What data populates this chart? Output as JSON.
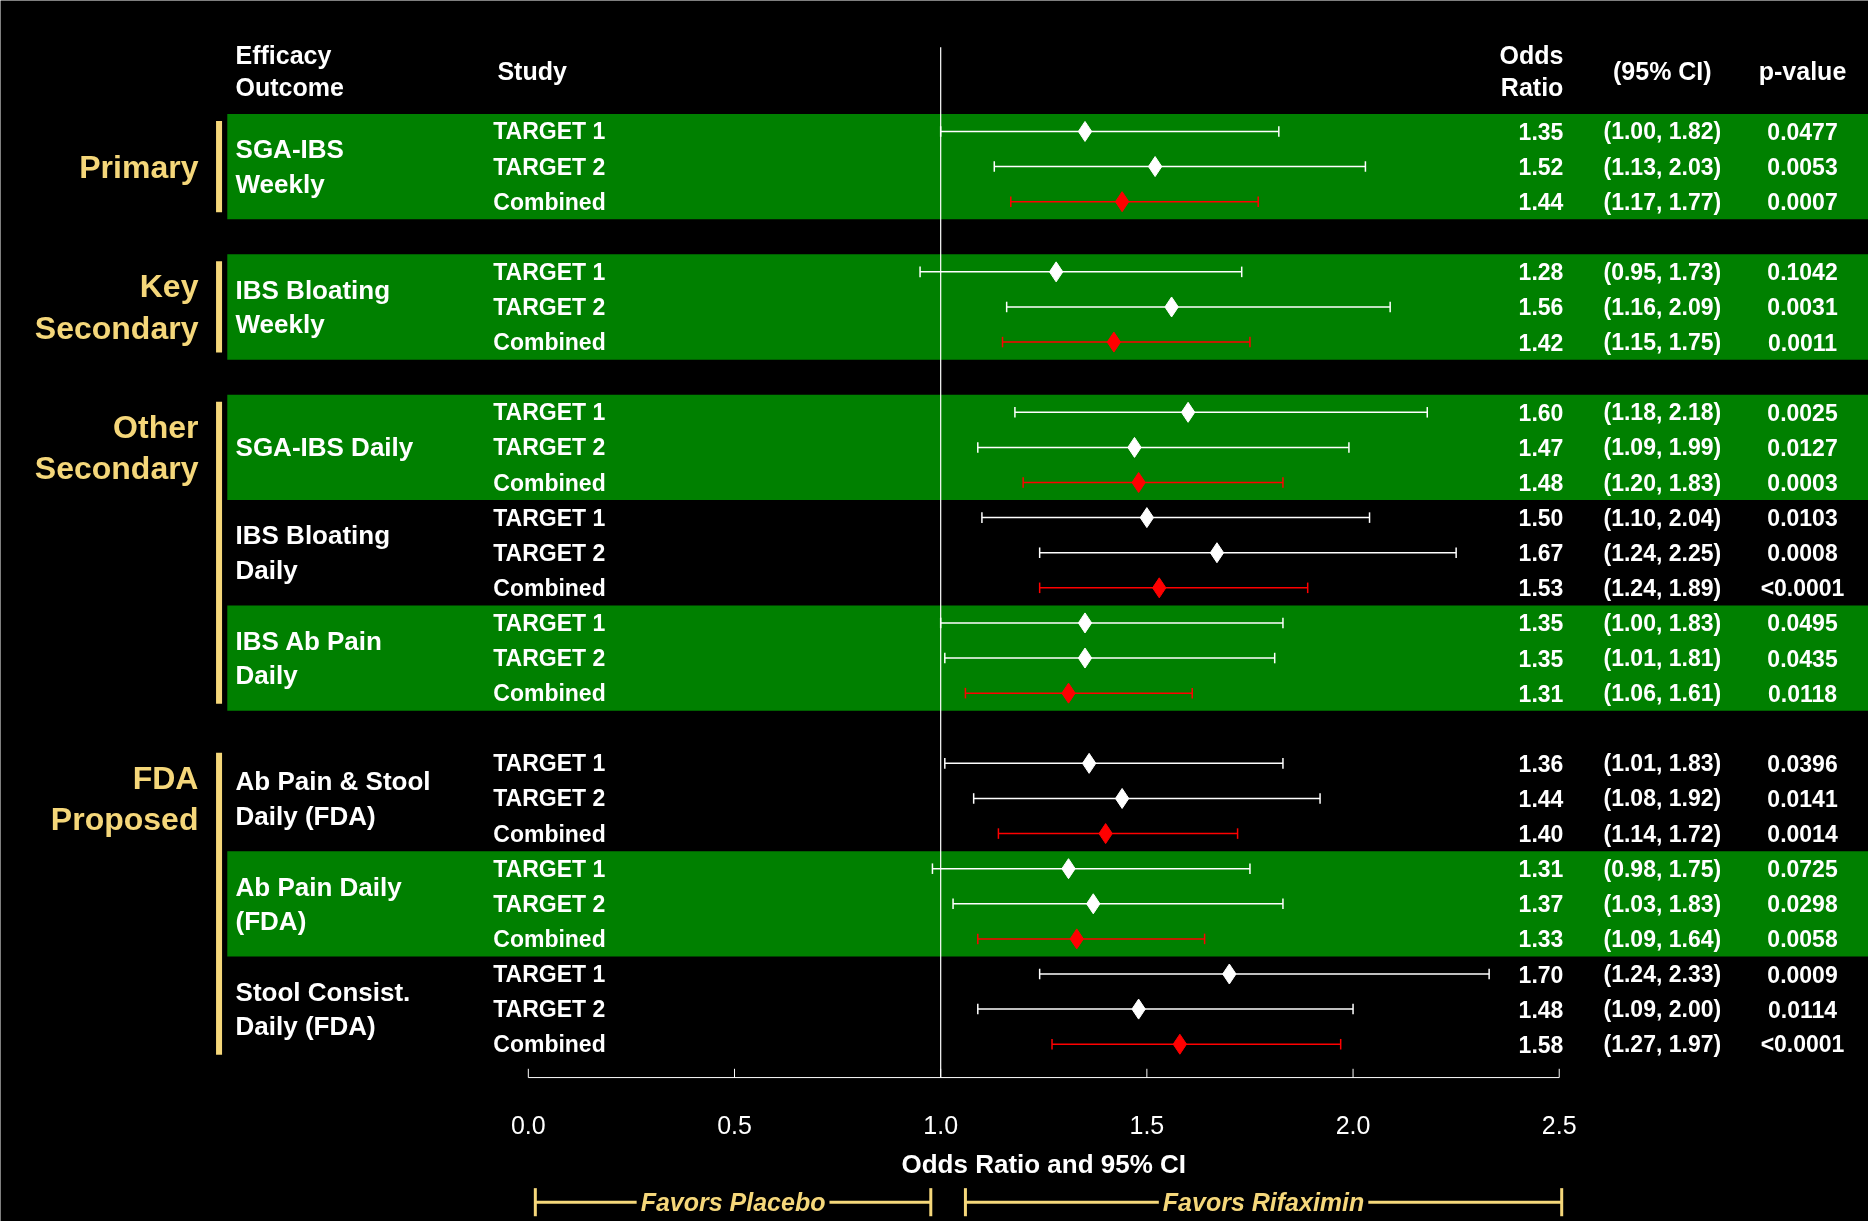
{
  "chart_data": {
    "type": "scatter",
    "orientation": "horizontal",
    "marker": "diamond",
    "xlabel": "Odds Ratio and 95% CI",
    "categories": [
      "TARGET 1",
      "TARGET 2",
      "Combined",
      null,
      "TARGET 1",
      "TARGET 2",
      "Combined",
      null,
      "TARGET 1",
      "TARGET 2",
      "Combined",
      "TARGET 1",
      "TARGET 2",
      "Combined",
      "TARGET 1",
      "TARGET 2",
      "Combined",
      null,
      "TARGET 1",
      "TARGET 2",
      "Combined",
      "TARGET 1",
      "TARGET 2",
      "Combined",
      "TARGET 1",
      "TARGET 2",
      "Combined"
    ],
    "series": [
      {
        "color": "#ffffff",
        "values": [
          1.35,
          1.52,
          null,
          null,
          1.28,
          1.56,
          null,
          null,
          1.6,
          1.47,
          null,
          1.5,
          1.67,
          null,
          1.35,
          1.35,
          null,
          null,
          1.36,
          1.44,
          null,
          1.31,
          1.37,
          null,
          1.7,
          1.48,
          null
        ],
        "errors": [
          [
            1.0,
            1.82
          ],
          [
            1.13,
            2.03
          ],
          null,
          null,
          [
            0.95,
            1.73
          ],
          [
            1.16,
            2.09
          ],
          null,
          null,
          [
            1.18,
            2.18
          ],
          [
            1.09,
            1.99
          ],
          null,
          [
            1.1,
            2.04
          ],
          [
            1.24,
            2.25
          ],
          null,
          [
            1.0,
            1.83
          ],
          [
            1.01,
            1.81
          ],
          null,
          null,
          [
            1.01,
            1.83
          ],
          [
            1.08,
            1.92
          ],
          null,
          [
            0.98,
            1.75
          ],
          [
            1.03,
            1.83
          ],
          null,
          [
            1.24,
            2.33
          ],
          [
            1.09,
            2.0
          ],
          null
        ]
      },
      {
        "color": "#ff0000",
        "values": [
          null,
          null,
          1.44,
          null,
          null,
          null,
          1.42,
          null,
          null,
          null,
          1.48,
          null,
          null,
          1.53,
          null,
          null,
          1.31,
          null,
          null,
          null,
          1.4,
          null,
          null,
          1.33,
          null,
          null,
          1.58
        ],
        "errors": [
          null,
          null,
          [
            1.17,
            1.77
          ],
          null,
          null,
          null,
          [
            1.15,
            1.75
          ],
          null,
          null,
          null,
          [
            1.2,
            1.83
          ],
          null,
          null,
          [
            1.24,
            1.89
          ],
          null,
          null,
          [
            1.06,
            1.61
          ],
          null,
          null,
          null,
          [
            1.14,
            1.72
          ],
          null,
          null,
          [
            1.09,
            1.64
          ],
          null,
          null,
          [
            1.27,
            1.97
          ]
        ]
      }
    ],
    "xlim": [
      0,
      2.5
    ],
    "xticks": [
      {
        "value": 0,
        "label": "0.0"
      },
      0.5,
      {
        "value": 1,
        "label": "1.0"
      },
      1.5,
      {
        "value": 2,
        "label": "2.0"
      },
      2.5
    ],
    "ref_lines": [
      {
        "axis": "x",
        "value": 1,
        "color": "#ffffff"
      }
    ],
    "annotations": [
      "Efficacy\nOutcome",
      "Study",
      "Odds\nRatio",
      "(95% CI)",
      "p-value",
      "Primary",
      "Key\nSecondary",
      "Other\nSecondary",
      "FDA\nProposed",
      "SGA-IBS\nWeekly",
      "IBS Bloating\nWeekly",
      "SGA-IBS Daily",
      "IBS Bloating\nDaily",
      "IBS Ab Pain\nDaily",
      "Ab Pain & Stool\nDaily (FDA)",
      "Ab Pain Daily\n(FDA)",
      "Stool Consist.\nDaily (FDA)",
      "1.35",
      "1.52",
      "1.44",
      "1.28",
      "1.56",
      "1.42",
      "1.60",
      "1.47",
      "1.48",
      "1.50",
      "1.67",
      "1.53",
      "1.35",
      "1.35",
      "1.31",
      "1.36",
      "1.44",
      "1.40",
      "1.31",
      "1.37",
      "1.33",
      "1.70",
      "1.48",
      "1.58",
      "(1.00, 1.82)",
      "(1.13, 2.03)",
      "(1.17, 1.77)",
      "(0.95, 1.73)",
      "(1.16, 2.09)",
      "(1.15, 1.75)",
      "(1.18, 2.18)",
      "(1.09, 1.99)",
      "(1.20, 1.83)",
      "(1.10, 2.04)",
      "(1.24, 2.25)",
      "(1.24, 1.89)",
      "(1.00, 1.83)",
      "(1.01, 1.81)",
      "(1.06, 1.61)",
      "(1.01, 1.83)",
      "(1.08, 1.92)",
      "(1.14, 1.72)",
      "(0.98, 1.75)",
      "(1.03, 1.83)",
      "(1.09, 1.64)",
      "(1.24, 2.33)",
      "(1.09, 2.00)",
      "(1.27, 1.97)",
      "0.0477",
      "0.0053",
      "0.0007",
      "0.1042",
      "0.0031",
      "0.0011",
      "0.0025",
      "0.0127",
      "0.0003",
      "0.0103",
      "0.0008",
      "<0.0001",
      "0.0495",
      "0.0435",
      "0.0118",
      "0.0396",
      "0.0141",
      "0.0014",
      "0.0725",
      "0.0298",
      "0.0058",
      "0.0009",
      "0.0114",
      "<0.0001",
      "Favors Placebo",
      "Favors Rifaximin"
    ]
  }
}
